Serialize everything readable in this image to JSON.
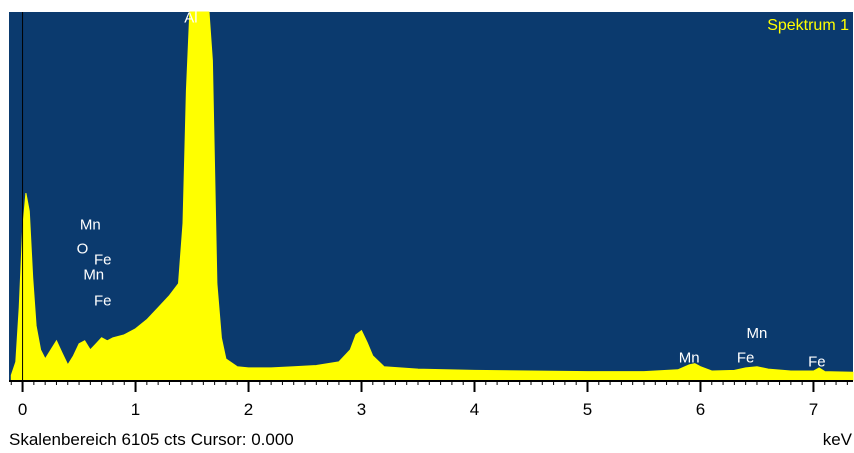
{
  "colors": {
    "background": "#0b3a6e",
    "spectrum_fill": "#ffff00",
    "spectrum_title": "#ffff00",
    "peak_label": "#ffffff",
    "axis": "#000000"
  },
  "chart_data": {
    "type": "area",
    "title": "Spektrum 1",
    "xunit": "keV",
    "xlim": [
      -0.12,
      7.35
    ],
    "ylim": [
      0,
      6105
    ],
    "xticks": [
      0,
      1,
      2,
      3,
      4,
      5,
      6,
      7
    ],
    "peak_labels": [
      {
        "text": "Al",
        "x": 1.49,
        "y": 5930
      },
      {
        "text": "Mn",
        "x": 0.6,
        "y": 2500
      },
      {
        "text": "O",
        "x": 0.53,
        "y": 2100
      },
      {
        "text": "Fe",
        "x": 0.71,
        "y": 1920
      },
      {
        "text": "Mn",
        "x": 0.63,
        "y": 1670
      },
      {
        "text": "Fe",
        "x": 0.71,
        "y": 1240
      },
      {
        "text": "Mn",
        "x": 5.9,
        "y": 290
      },
      {
        "text": "Mn",
        "x": 6.5,
        "y": 700
      },
      {
        "text": "Fe",
        "x": 6.4,
        "y": 290
      },
      {
        "text": "Fe",
        "x": 7.03,
        "y": 220
      }
    ],
    "series": [
      {
        "x": [
          -0.1,
          -0.06,
          -0.03,
          0.0,
          0.03,
          0.06,
          0.09,
          0.12,
          0.16,
          0.2,
          0.25,
          0.3,
          0.35,
          0.4,
          0.45,
          0.5,
          0.55,
          0.6,
          0.65,
          0.7,
          0.75,
          0.8,
          0.9,
          1.0,
          1.1,
          1.2,
          1.3,
          1.38,
          1.42,
          1.45,
          1.48,
          1.5,
          1.55,
          1.6,
          1.65,
          1.68,
          1.72,
          1.76,
          1.8,
          1.9,
          2.0,
          2.2,
          2.4,
          2.6,
          2.8,
          2.9,
          2.95,
          3.0,
          3.05,
          3.1,
          3.2,
          3.5,
          4.0,
          4.5,
          5.0,
          5.5,
          5.8,
          5.9,
          5.95,
          6.0,
          6.1,
          6.3,
          6.4,
          6.5,
          6.6,
          6.8,
          7.0,
          7.05,
          7.1,
          7.35
        ],
        "values": [
          80,
          300,
          1200,
          2500,
          3100,
          2800,
          1700,
          900,
          500,
          350,
          500,
          650,
          450,
          250,
          400,
          600,
          650,
          500,
          600,
          700,
          650,
          700,
          750,
          850,
          1000,
          1200,
          1400,
          1600,
          2600,
          4800,
          6105,
          6105,
          6105,
          6105,
          6105,
          5300,
          1600,
          700,
          350,
          220,
          200,
          200,
          220,
          240,
          300,
          500,
          750,
          820,
          620,
          400,
          220,
          180,
          160,
          150,
          140,
          140,
          170,
          250,
          270,
          220,
          150,
          160,
          200,
          220,
          180,
          150,
          150,
          200,
          140,
          130
        ]
      }
    ]
  },
  "status": {
    "scale_text": "Skalenbereich 6105 cts",
    "cursor_text": "Cursor: 0.000",
    "unit_text": "keV"
  }
}
